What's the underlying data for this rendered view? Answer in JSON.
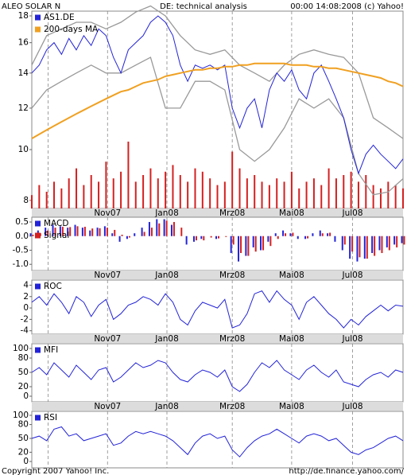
{
  "header": {
    "left": "ALEO SOLAR N",
    "center": "DE: technical analysis",
    "right": "00:00 14:08:2008 (c) Yahoo!"
  },
  "footer": {
    "left": "Copyright 2007 Yahoo! Inc.",
    "right": "http://de.finance.yahoo.com/"
  },
  "chart_data": [
    {
      "type": "line",
      "log": true,
      "x": [
        0,
        5,
        10,
        15,
        20,
        25,
        30,
        35,
        40,
        45,
        50,
        55,
        60,
        65,
        70,
        75,
        80,
        85,
        90,
        95,
        100,
        105,
        110,
        115,
        120,
        125,
        130,
        135,
        140,
        145,
        150,
        155,
        160,
        165,
        170,
        175,
        180,
        185,
        190,
        195,
        200,
        205,
        210,
        215,
        220,
        225,
        230,
        235,
        240,
        245,
        250
      ],
      "xlim": [
        0,
        250
      ],
      "xticks": [
        {
          "value": 11,
          "label": null
        },
        {
          "value": 51,
          "label": "Nov07"
        },
        {
          "value": 91,
          "label": "Jan08"
        },
        {
          "value": 135,
          "label": "Mrz08"
        },
        {
          "value": 175,
          "label": "Mai08"
        },
        {
          "value": 216,
          "label": "Jul08"
        }
      ],
      "ylim": [
        7.72,
        18.38
      ],
      "yticks": [
        8,
        10,
        12,
        14,
        16,
        18
      ],
      "series": [
        {
          "name": "AS1.DE",
          "color": "#2323d8",
          "values": [
            14.0,
            14.5,
            15.5,
            16.0,
            15.2,
            16.3,
            15.5,
            16.5,
            15.8,
            17.0,
            16.5,
            15.0,
            14.0,
            15.5,
            16.0,
            16.5,
            17.5,
            18.0,
            17.5,
            16.5,
            14.5,
            13.5,
            14.5,
            14.3,
            14.5,
            14.2,
            14.5,
            12.0,
            11.0,
            12.0,
            12.5,
            11.0,
            13.0,
            14.0,
            13.5,
            14.2,
            13.0,
            12.5,
            14.0,
            14.5,
            13.5,
            12.5,
            11.5,
            10.0,
            9.0,
            9.8,
            10.2,
            9.8,
            9.5,
            9.2,
            9.6
          ]
        },
        {
          "name": "200-days MA",
          "color": "#f0a020",
          "values": [
            10.5,
            10.7,
            10.9,
            11.1,
            11.3,
            11.5,
            11.7,
            11.9,
            12.1,
            12.3,
            12.5,
            12.7,
            12.9,
            13.0,
            13.2,
            13.4,
            13.5,
            13.6,
            13.8,
            13.9,
            14.0,
            14.1,
            14.2,
            14.2,
            14.3,
            14.3,
            14.4,
            14.4,
            14.5,
            14.5,
            14.6,
            14.6,
            14.6,
            14.6,
            14.6,
            14.5,
            14.5,
            14.5,
            14.4,
            14.4,
            14.3,
            14.3,
            14.2,
            14.1,
            14.0,
            13.9,
            13.8,
            13.7,
            13.5,
            13.4,
            13.2
          ]
        }
      ],
      "bands": {
        "color": "#999999",
        "x": [
          0,
          10,
          20,
          30,
          40,
          50,
          60,
          70,
          80,
          90,
          100,
          110,
          120,
          130,
          140,
          150,
          160,
          170,
          180,
          190,
          200,
          210,
          220,
          230,
          240,
          250
        ],
        "upper": [
          14.5,
          16.5,
          17.0,
          17.5,
          17.5,
          17.0,
          17.5,
          18.3,
          18.8,
          18.0,
          16.5,
          15.5,
          15.2,
          15.5,
          14.5,
          14.0,
          13.5,
          14.5,
          15.2,
          15.5,
          15.2,
          15.0,
          14.0,
          11.5,
          11.0,
          10.5
        ],
        "lower": [
          12.0,
          13.0,
          13.5,
          14.0,
          14.5,
          14.0,
          14.0,
          14.5,
          15.0,
          12.0,
          12.0,
          13.5,
          13.5,
          13.0,
          10.0,
          9.5,
          10.0,
          11.0,
          12.5,
          12.0,
          12.5,
          11.5,
          9.0,
          8.2,
          8.3,
          8.8
        ]
      },
      "volume": {
        "color": "#d42020",
        "values": [
          20,
          35,
          25,
          40,
          30,
          45,
          60,
          35,
          50,
          40,
          70,
          45,
          55,
          100,
          40,
          50,
          60,
          45,
          55,
          65,
          50,
          40,
          60,
          55,
          45,
          35,
          40,
          85,
          60,
          45,
          50,
          40,
          35,
          45,
          40,
          55,
          30,
          40,
          45,
          35,
          60,
          45,
          50,
          55,
          40,
          50,
          35,
          30,
          40,
          35,
          30
        ]
      }
    },
    {
      "type": "bar",
      "x": [
        0,
        5,
        10,
        15,
        20,
        25,
        30,
        35,
        40,
        45,
        50,
        55,
        60,
        65,
        70,
        75,
        80,
        85,
        90,
        95,
        100,
        105,
        110,
        115,
        120,
        125,
        130,
        135,
        140,
        145,
        150,
        155,
        160,
        165,
        170,
        175,
        180,
        185,
        190,
        195,
        200,
        205,
        210,
        215,
        220,
        225,
        230,
        235,
        240,
        245,
        250
      ],
      "xlim": [
        0,
        250
      ],
      "xticks": [
        {
          "value": 11,
          "label": null
        },
        {
          "value": 51,
          "label": "Nov07"
        },
        {
          "value": 91,
          "label": "Jan08"
        },
        {
          "value": 135,
          "label": "Mrz08"
        },
        {
          "value": 175,
          "label": "Mai08"
        },
        {
          "value": 216,
          "label": "Jul08"
        }
      ],
      "ylim": [
        -1.22,
        0.67
      ],
      "yticks": [
        0.5,
        {
          "value": 0,
          "label": "0.0"
        },
        -0.5,
        {
          "value": -1,
          "label": "-1.0"
        }
      ],
      "series": [
        {
          "name": "MACD",
          "color": "#2323d8",
          "values": [
            0.1,
            0.2,
            0.3,
            0.4,
            0.35,
            0.3,
            0.4,
            0.3,
            0.2,
            0.3,
            0.35,
            0.1,
            -0.2,
            -0.1,
            0.1,
            0.3,
            0.5,
            0.6,
            0.6,
            0.4,
            0.0,
            -0.3,
            -0.2,
            -0.1,
            0.0,
            -0.1,
            0.0,
            -0.6,
            -0.9,
            -0.7,
            -0.4,
            -0.5,
            -0.2,
            0.1,
            0.2,
            0.1,
            -0.1,
            -0.1,
            0.1,
            0.2,
            0.1,
            -0.2,
            -0.5,
            -0.8,
            -0.9,
            -0.8,
            -0.6,
            -0.5,
            -0.4,
            -0.3,
            -0.25
          ]
        },
        {
          "name": "Signal",
          "color": "#d42020",
          "values": [
            0.05,
            0.1,
            0.2,
            0.3,
            0.33,
            0.32,
            0.35,
            0.33,
            0.27,
            0.28,
            0.3,
            0.22,
            0.05,
            -0.05,
            0.0,
            0.15,
            0.3,
            0.45,
            0.55,
            0.5,
            0.3,
            0.0,
            -0.15,
            -0.15,
            -0.05,
            -0.08,
            -0.03,
            -0.3,
            -0.6,
            -0.7,
            -0.55,
            -0.5,
            -0.35,
            -0.1,
            0.1,
            0.12,
            0.0,
            -0.08,
            0.0,
            0.1,
            0.12,
            0.0,
            -0.3,
            -0.55,
            -0.75,
            -0.8,
            -0.7,
            -0.6,
            -0.5,
            -0.4,
            -0.3
          ]
        }
      ]
    },
    {
      "type": "line",
      "x": [
        0,
        5,
        10,
        15,
        20,
        25,
        30,
        35,
        40,
        45,
        50,
        55,
        60,
        65,
        70,
        75,
        80,
        85,
        90,
        95,
        100,
        105,
        110,
        115,
        120,
        125,
        130,
        135,
        140,
        145,
        150,
        155,
        160,
        165,
        170,
        175,
        180,
        185,
        190,
        195,
        200,
        205,
        210,
        215,
        220,
        225,
        230,
        235,
        240,
        245,
        250
      ],
      "xlim": [
        0,
        250
      ],
      "xticks": [
        {
          "value": 11,
          "label": null
        },
        {
          "value": 51,
          "label": "Nov07"
        },
        {
          "value": 91,
          "label": "Jan08"
        },
        {
          "value": 135,
          "label": "Mrz08"
        },
        {
          "value": 175,
          "label": "Mai08"
        },
        {
          "value": 216,
          "label": "Jul08"
        }
      ],
      "ylim": [
        -4.6,
        4.9
      ],
      "yticks": [
        4,
        2,
        0,
        -2,
        -4
      ],
      "series": [
        {
          "name": "ROC",
          "color": "#2323d8",
          "values": [
            1,
            2,
            0.5,
            2.5,
            1,
            -1,
            2,
            1,
            -1.5,
            0.5,
            1.5,
            -2,
            -1,
            0.5,
            1,
            2,
            1.5,
            0.5,
            2.5,
            1,
            -2,
            -3,
            -0.5,
            1,
            0.5,
            0,
            1.5,
            -3.5,
            -3,
            -1,
            2.5,
            3,
            1,
            3,
            1.5,
            0.5,
            -2,
            1,
            2,
            0.5,
            -1,
            -2,
            -3.5,
            -2,
            -3,
            -1.5,
            -0.5,
            0.5,
            -0.5,
            0.5,
            0.3
          ]
        }
      ]
    },
    {
      "type": "line",
      "x": [
        0,
        5,
        10,
        15,
        20,
        25,
        30,
        35,
        40,
        45,
        50,
        55,
        60,
        65,
        70,
        75,
        80,
        85,
        90,
        95,
        100,
        105,
        110,
        115,
        120,
        125,
        130,
        135,
        140,
        145,
        150,
        155,
        160,
        165,
        170,
        175,
        180,
        185,
        190,
        195,
        200,
        205,
        210,
        215,
        220,
        225,
        230,
        235,
        240,
        245,
        250
      ],
      "xlim": [
        0,
        250
      ],
      "xticks": [
        {
          "value": 11,
          "label": null
        },
        {
          "value": 51,
          "label": "Nov07"
        },
        {
          "value": 91,
          "label": "Jan08"
        },
        {
          "value": 135,
          "label": "Mrz08"
        },
        {
          "value": 175,
          "label": "Mai08"
        },
        {
          "value": 216,
          "label": "Jul08"
        }
      ],
      "ylim": [
        -11.7,
        110
      ],
      "yticks": [
        100,
        80,
        50,
        20,
        0
      ],
      "series": [
        {
          "name": "MFI",
          "color": "#2323d8",
          "values": [
            50,
            60,
            45,
            70,
            55,
            40,
            65,
            50,
            35,
            55,
            60,
            30,
            40,
            55,
            70,
            60,
            65,
            75,
            70,
            50,
            35,
            30,
            45,
            55,
            50,
            40,
            55,
            20,
            10,
            25,
            50,
            70,
            60,
            75,
            55,
            45,
            35,
            55,
            65,
            50,
            40,
            55,
            30,
            25,
            20,
            35,
            45,
            50,
            40,
            55,
            50
          ]
        }
      ]
    },
    {
      "type": "line",
      "x": [
        0,
        5,
        10,
        15,
        20,
        25,
        30,
        35,
        40,
        45,
        50,
        55,
        60,
        65,
        70,
        75,
        80,
        85,
        90,
        95,
        100,
        105,
        110,
        115,
        120,
        125,
        130,
        135,
        140,
        145,
        150,
        155,
        160,
        165,
        170,
        175,
        180,
        185,
        190,
        195,
        200,
        205,
        210,
        215,
        220,
        225,
        230,
        235,
        240,
        245,
        250
      ],
      "xlim": [
        0,
        250
      ],
      "xticks": [
        {
          "value": 11,
          "label": null
        },
        {
          "value": 51,
          "label": null
        },
        {
          "value": 91,
          "label": null
        },
        {
          "value": 135,
          "label": null
        },
        {
          "value": 175,
          "label": null
        },
        {
          "value": 216,
          "label": null
        }
      ],
      "ylim": [
        -13.8,
        108.6
      ],
      "yticks": [
        100,
        80,
        50,
        20,
        0
      ],
      "series": [
        {
          "name": "RSI",
          "color": "#2323d8",
          "values": [
            50,
            55,
            45,
            70,
            75,
            55,
            60,
            45,
            50,
            55,
            60,
            35,
            40,
            55,
            65,
            60,
            65,
            60,
            55,
            45,
            30,
            15,
            40,
            55,
            60,
            50,
            55,
            25,
            10,
            30,
            45,
            55,
            60,
            70,
            60,
            50,
            40,
            55,
            60,
            55,
            45,
            50,
            35,
            20,
            15,
            25,
            30,
            40,
            50,
            55,
            45
          ]
        }
      ]
    }
  ]
}
